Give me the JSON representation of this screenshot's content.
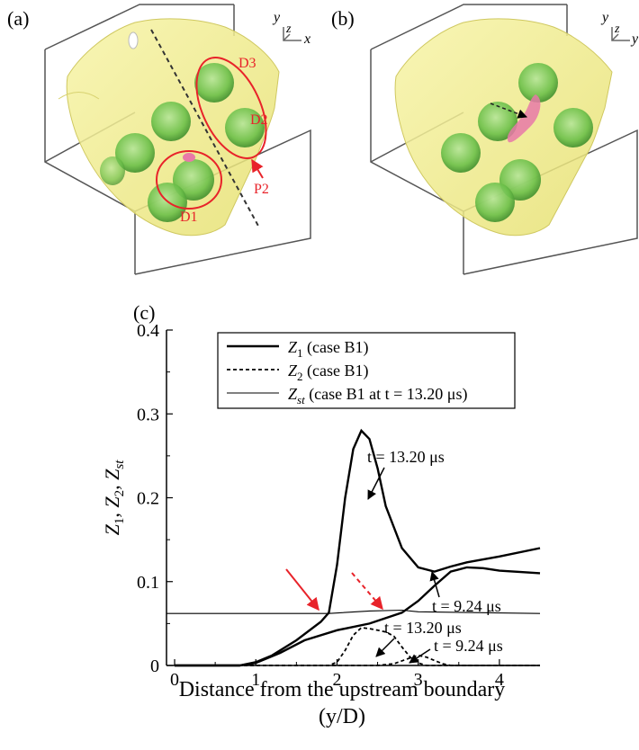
{
  "panels": {
    "a": {
      "label": "(a)",
      "annotations": [
        "D3",
        "D2",
        "P2",
        "D1"
      ],
      "axis": [
        "y",
        "z",
        "x"
      ]
    },
    "b": {
      "label": "(b)",
      "axis": [
        "y",
        "z",
        "y"
      ]
    },
    "c": {
      "label": "(c)"
    }
  },
  "colors": {
    "isosurface": "#f2f08a",
    "droplet": "#7fcf5a",
    "flame": "#e879a8",
    "annotation": "#e8232a",
    "axes": "#000000"
  },
  "chart_data": {
    "type": "line",
    "xlabel_line1": "Distance from the upstream boundary",
    "xlabel_line2": "(y/D)",
    "ylabel": "Z1, Z2, Zst",
    "xlim": [
      -0.1,
      4.5
    ],
    "ylim": [
      0,
      0.4
    ],
    "x_ticks": [
      "0",
      "1",
      "2",
      "3",
      "4"
    ],
    "y_ticks": [
      "0",
      "0.1",
      "0.2",
      "0.3",
      "0.4"
    ],
    "legend": [
      {
        "symbol": "Z",
        "sub": "1",
        "text": "(case B1)",
        "style": "thick"
      },
      {
        "symbol": "Z",
        "sub": "2",
        "text": "(case B1)",
        "style": "dashed"
      },
      {
        "symbol": "Z",
        "sub": "st",
        "text": "(case B1 at t = 13.20 μs)",
        "style": "thin"
      }
    ],
    "series": [
      {
        "name": "Z1 (case B1)",
        "label": "t = 13.20 μs",
        "style": "thick",
        "x": [
          0,
          0.8,
          1.0,
          1.2,
          1.5,
          1.8,
          1.9,
          2.0,
          2.1,
          2.2,
          2.3,
          2.4,
          2.5,
          2.6,
          2.8,
          3.0,
          3.2,
          3.4,
          3.6,
          4.0,
          4.5
        ],
        "y": [
          0,
          0,
          0.004,
          0.012,
          0.03,
          0.052,
          0.063,
          0.12,
          0.2,
          0.258,
          0.28,
          0.27,
          0.235,
          0.19,
          0.14,
          0.117,
          0.112,
          0.118,
          0.123,
          0.13,
          0.14
        ]
      },
      {
        "name": "Z1 (case B1)",
        "label": "t = 9.24 μs",
        "style": "thick",
        "x": [
          0,
          0.8,
          1.0,
          1.3,
          1.6,
          2.0,
          2.4,
          2.8,
          3.0,
          3.2,
          3.4,
          3.6,
          3.8,
          4.0,
          4.5
        ],
        "y": [
          0,
          0,
          0.003,
          0.015,
          0.03,
          0.042,
          0.05,
          0.063,
          0.077,
          0.095,
          0.112,
          0.117,
          0.116,
          0.113,
          0.11
        ]
      },
      {
        "name": "Z2 (case B1)",
        "label": "t = 13.20 μs",
        "style": "dashed",
        "x": [
          0,
          1.9,
          2.0,
          2.1,
          2.2,
          2.3,
          2.4,
          2.5,
          2.6,
          2.7,
          2.8,
          2.9,
          3.0,
          3.1,
          4.5
        ],
        "y": [
          0,
          0,
          0.004,
          0.018,
          0.036,
          0.045,
          0.044,
          0.042,
          0.04,
          0.035,
          0.022,
          0.01,
          0.003,
          0,
          0
        ]
      },
      {
        "name": "Z2 (case B1)",
        "label": "t = 9.24 μs",
        "style": "dashed",
        "x": [
          0,
          2.5,
          2.7,
          2.9,
          3.0,
          3.1,
          3.2,
          3.3,
          3.4,
          4.5
        ],
        "y": [
          0,
          0,
          0.002,
          0.009,
          0.012,
          0.01,
          0.006,
          0.002,
          0,
          0
        ]
      },
      {
        "name": "Zst (case B1 at t = 13.20 μs)",
        "style": "thin",
        "x": [
          -0.1,
          1.0,
          1.9,
          2.4,
          2.8,
          3.0,
          4.5
        ],
        "y": [
          0.062,
          0.062,
          0.062,
          0.065,
          0.066,
          0.064,
          0.062
        ]
      }
    ],
    "annotations": [
      {
        "text": "t = 13.20 μs",
        "x": 2.5,
        "y": 0.278
      },
      {
        "text": "t = 9.24 μs",
        "x": 3.25,
        "y": 0.085
      },
      {
        "text": "t = 13.20 μs",
        "x": 2.88,
        "y": 0.037
      },
      {
        "text": "t = 9.24 μs",
        "x": 2.95,
        "y": 0.006
      }
    ],
    "grid": false
  }
}
